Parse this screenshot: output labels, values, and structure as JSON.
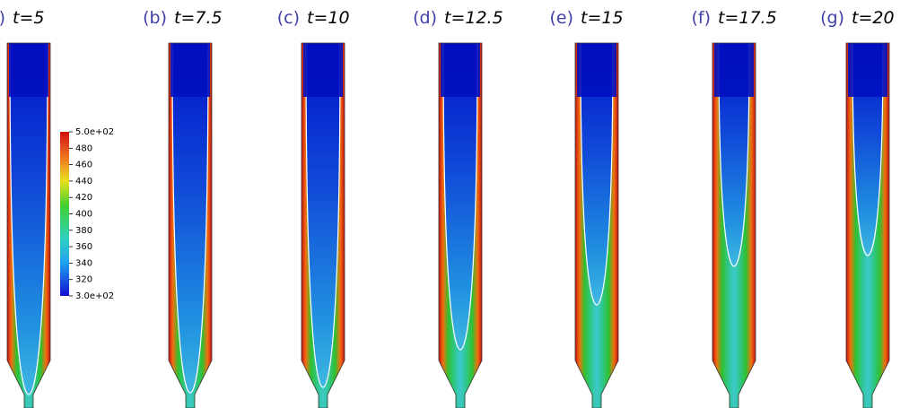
{
  "panels": [
    {
      "label": "(a)",
      "time": "t=5"
    },
    {
      "label": "(b)",
      "time": "t=7.5"
    },
    {
      "label": "(c)",
      "time": "t=10"
    },
    {
      "label": "(d)",
      "time": "t=12.5"
    },
    {
      "label": "(e)",
      "time": "t=15"
    },
    {
      "label": "(f)",
      "time": "t=17.5"
    },
    {
      "label": "(g)",
      "time": "t=20"
    }
  ],
  "colorbar": {
    "range": [
      300,
      500
    ],
    "ticks": [
      {
        "value": 500,
        "label": "5.0e+02"
      },
      480,
      460,
      440,
      420,
      400,
      380,
      360,
      340,
      320,
      {
        "value": 300,
        "label": "3.0e+02"
      }
    ]
  }
}
